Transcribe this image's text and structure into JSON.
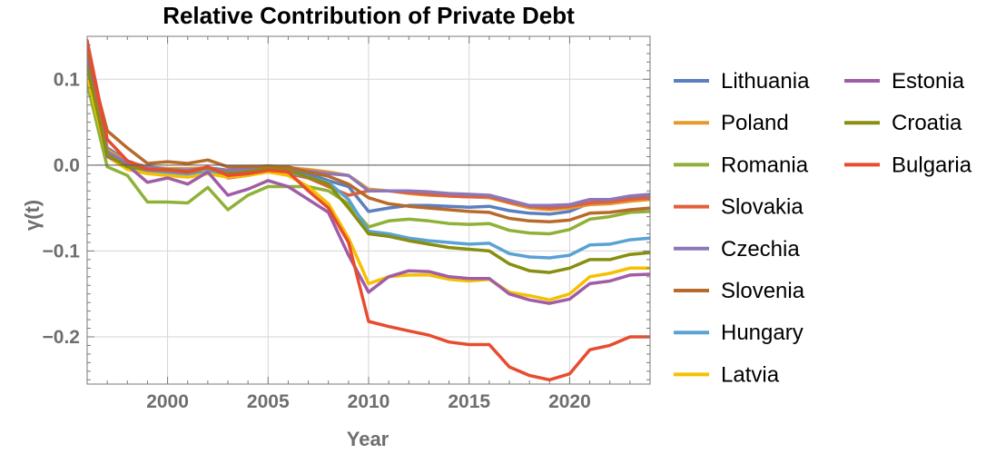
{
  "chart_data": {
    "type": "line",
    "title": "Relative Contribution of Private Debt",
    "xlabel": "Year",
    "ylabel": "γ(t)",
    "xlim": [
      1996,
      2024
    ],
    "ylim": [
      -0.255,
      0.15
    ],
    "x_ticks": [
      2000,
      2005,
      2010,
      2015,
      2020
    ],
    "x_tick_labels": [
      "2000",
      "2005",
      "2010",
      "2015",
      "2020"
    ],
    "y_ticks": [
      0.1,
      0.0,
      -0.1,
      -0.2
    ],
    "y_tick_labels": [
      "0.1",
      "0.0",
      "−0.1",
      "−0.2"
    ],
    "grid": true,
    "legend_position": "right",
    "x": [
      1996,
      1997,
      1998,
      1999,
      2000,
      2001,
      2002,
      2003,
      2004,
      2005,
      2006,
      2007,
      2008,
      2009,
      2010,
      2011,
      2012,
      2013,
      2014,
      2015,
      2016,
      2017,
      2018,
      2019,
      2020,
      2021,
      2022,
      2023,
      2024
    ],
    "series": [
      {
        "name": "Lithuania",
        "color": "#5b7fbf",
        "values": [
          0.125,
          0.02,
          0.005,
          -0.003,
          -0.005,
          -0.007,
          -0.004,
          -0.008,
          -0.006,
          -0.003,
          -0.004,
          -0.01,
          -0.018,
          -0.025,
          -0.054,
          -0.05,
          -0.047,
          -0.047,
          -0.048,
          -0.049,
          -0.048,
          -0.053,
          -0.056,
          -0.057,
          -0.054,
          -0.044,
          -0.043,
          -0.039,
          -0.037
        ]
      },
      {
        "name": "Poland",
        "color": "#e59a2e",
        "values": [
          0.12,
          0.018,
          0.004,
          -0.002,
          -0.004,
          -0.004,
          -0.003,
          -0.006,
          -0.004,
          -0.002,
          -0.003,
          -0.005,
          -0.008,
          -0.012,
          -0.028,
          -0.03,
          -0.033,
          -0.035,
          -0.036,
          -0.037,
          -0.038,
          -0.044,
          -0.05,
          -0.052,
          -0.05,
          -0.046,
          -0.045,
          -0.042,
          -0.04
        ]
      },
      {
        "name": "Romania",
        "color": "#8fb138",
        "values": [
          0.095,
          -0.002,
          -0.012,
          -0.043,
          -0.043,
          -0.044,
          -0.026,
          -0.052,
          -0.035,
          -0.025,
          -0.025,
          -0.025,
          -0.03,
          -0.045,
          -0.072,
          -0.065,
          -0.063,
          -0.065,
          -0.068,
          -0.069,
          -0.068,
          -0.076,
          -0.079,
          -0.08,
          -0.075,
          -0.063,
          -0.06,
          -0.055,
          -0.054
        ]
      },
      {
        "name": "Slovakia",
        "color": "#e0603a",
        "values": [
          0.14,
          0.015,
          0.002,
          -0.008,
          -0.008,
          -0.01,
          -0.003,
          -0.015,
          -0.012,
          -0.007,
          -0.01,
          -0.015,
          -0.025,
          -0.035,
          -0.03,
          -0.03,
          -0.032,
          -0.034,
          -0.036,
          -0.037,
          -0.037,
          -0.043,
          -0.048,
          -0.05,
          -0.048,
          -0.044,
          -0.043,
          -0.04,
          -0.038
        ]
      },
      {
        "name": "Czechia",
        "color": "#8d77b8",
        "values": [
          0.115,
          0.015,
          0.003,
          -0.002,
          -0.005,
          -0.006,
          -0.003,
          -0.006,
          -0.005,
          -0.002,
          -0.004,
          -0.007,
          -0.01,
          -0.012,
          -0.03,
          -0.03,
          -0.03,
          -0.031,
          -0.033,
          -0.034,
          -0.035,
          -0.041,
          -0.047,
          -0.047,
          -0.046,
          -0.04,
          -0.04,
          -0.036,
          -0.034
        ]
      },
      {
        "name": "Slovenia",
        "color": "#b86a2a",
        "values": [
          0.13,
          0.04,
          0.02,
          0.002,
          0.004,
          0.002,
          0.006,
          -0.002,
          -0.002,
          -0.001,
          -0.002,
          -0.008,
          -0.013,
          -0.022,
          -0.038,
          -0.045,
          -0.048,
          -0.05,
          -0.052,
          -0.054,
          -0.055,
          -0.062,
          -0.065,
          -0.066,
          -0.064,
          -0.056,
          -0.055,
          -0.052,
          -0.05
        ]
      },
      {
        "name": "Hungary",
        "color": "#5aa2d3",
        "values": [
          0.11,
          0.012,
          -0.002,
          -0.008,
          -0.01,
          -0.012,
          -0.008,
          -0.012,
          -0.01,
          -0.006,
          -0.008,
          -0.014,
          -0.02,
          -0.04,
          -0.077,
          -0.08,
          -0.085,
          -0.088,
          -0.09,
          -0.092,
          -0.091,
          -0.103,
          -0.107,
          -0.108,
          -0.105,
          -0.093,
          -0.092,
          -0.087,
          -0.085
        ]
      },
      {
        "name": "Latvia",
        "color": "#f5c000",
        "values": [
          0.105,
          0.01,
          -0.005,
          -0.01,
          -0.012,
          -0.014,
          -0.01,
          -0.014,
          -0.012,
          -0.008,
          -0.012,
          -0.025,
          -0.045,
          -0.085,
          -0.138,
          -0.13,
          -0.128,
          -0.128,
          -0.133,
          -0.135,
          -0.133,
          -0.148,
          -0.152,
          -0.157,
          -0.15,
          -0.13,
          -0.126,
          -0.12,
          -0.12
        ]
      },
      {
        "name": "Estonia",
        "color": "#a05ca6",
        "values": [
          0.12,
          0.01,
          0.0,
          -0.02,
          -0.015,
          -0.022,
          -0.008,
          -0.035,
          -0.028,
          -0.018,
          -0.025,
          -0.04,
          -0.055,
          -0.105,
          -0.148,
          -0.13,
          -0.123,
          -0.124,
          -0.13,
          -0.132,
          -0.132,
          -0.15,
          -0.157,
          -0.161,
          -0.156,
          -0.138,
          -0.135,
          -0.128,
          -0.127
        ]
      },
      {
        "name": "Croatia",
        "color": "#888e0f",
        "values": [
          0.115,
          0.012,
          -0.002,
          -0.005,
          -0.005,
          -0.008,
          -0.003,
          -0.01,
          -0.008,
          -0.004,
          -0.006,
          -0.014,
          -0.022,
          -0.05,
          -0.08,
          -0.083,
          -0.088,
          -0.092,
          -0.096,
          -0.098,
          -0.1,
          -0.115,
          -0.123,
          -0.125,
          -0.12,
          -0.11,
          -0.11,
          -0.104,
          -0.102
        ]
      },
      {
        "name": "Bulgaria",
        "color": "#e84c2f",
        "values": [
          0.145,
          0.03,
          0.005,
          -0.005,
          -0.006,
          -0.008,
          -0.002,
          -0.012,
          -0.01,
          -0.006,
          -0.008,
          -0.03,
          -0.05,
          -0.09,
          -0.182,
          -0.188,
          -0.193,
          -0.198,
          -0.206,
          -0.209,
          -0.209,
          -0.235,
          -0.245,
          -0.25,
          -0.243,
          -0.215,
          -0.21,
          -0.2,
          -0.2
        ]
      }
    ]
  }
}
